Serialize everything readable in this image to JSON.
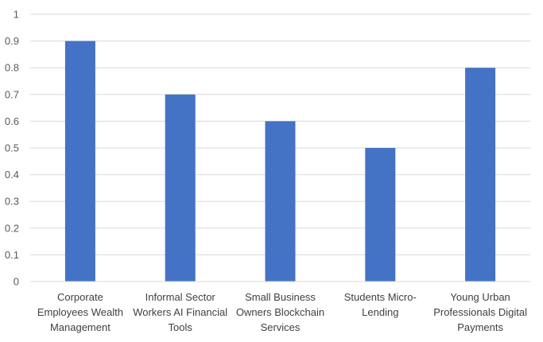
{
  "chart_data": {
    "type": "bar",
    "categories": [
      [
        "Corporate",
        "Employees Wealth",
        "Management"
      ],
      [
        "Informal Sector",
        "Workers AI Financial",
        "Tools"
      ],
      [
        "Small Business",
        "Owners Blockchain",
        "Services"
      ],
      [
        "Students Micro-",
        "Lending"
      ],
      [
        "Young Urban",
        "Professionals Digital",
        "Payments"
      ]
    ],
    "values": [
      0.9,
      0.7,
      0.6,
      0.5,
      0.8
    ],
    "ylim": [
      0,
      1
    ],
    "yticks": [
      "0",
      "0.1",
      "0.2",
      "0.3",
      "0.4",
      "0.5",
      "0.6",
      "0.7",
      "0.8",
      "0.9",
      "1"
    ],
    "grid": true,
    "bar_color": "#4472C4",
    "grid_color": "#D9D9D9",
    "legend": "none"
  }
}
